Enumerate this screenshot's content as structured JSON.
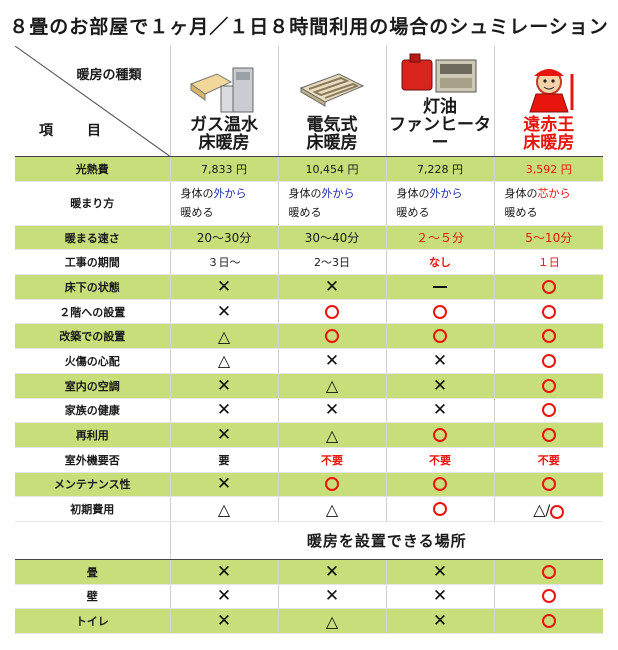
{
  "title": "８畳のお部屋で１ヶ月／１日８時間利用の場合のシュミレーション",
  "header": {
    "kind_label": "暖房の種類",
    "item_label": "項　目",
    "products": [
      {
        "line1": "ガス温水",
        "line2": "床暖房"
      },
      {
        "line1": "電気式",
        "line2": "床暖房"
      },
      {
        "line1": "灯油",
        "line2": "ファンヒーター"
      },
      {
        "line1": "遠赤王",
        "line2": "床暖房"
      }
    ]
  },
  "rows": {
    "cost": {
      "label": "光熱費",
      "values": [
        "7,833 円",
        "10,454 円",
        "7,228 円",
        "3,592 円"
      ]
    },
    "warm_way": {
      "label": "暖まり方",
      "prefix": "身体の",
      "suffix": "暖める",
      "highlights": [
        "外から",
        "外から",
        "外から",
        "芯から"
      ]
    },
    "speed": {
      "label": "暖まる速さ",
      "values": [
        "20～30分",
        "30～40分",
        "２～５分",
        "5～10分"
      ]
    },
    "period": {
      "label": "工事の期間",
      "values": [
        "３日～",
        "2～3日",
        "なし",
        "１日"
      ]
    },
    "floor": {
      "label": "床下の状態"
    },
    "second_floor": {
      "label": "２階への設置"
    },
    "renovation": {
      "label": "改築での設置"
    },
    "burn": {
      "label": "火傷の心配"
    },
    "aircon": {
      "label": "室内の空調"
    },
    "health": {
      "label": "家族の健康"
    },
    "reuse": {
      "label": "再利用"
    },
    "outdoor": {
      "label": "室外機要否",
      "values": [
        "要",
        "不要",
        "不要",
        "不要"
      ]
    },
    "maintenance": {
      "label": "メンテナンス性"
    },
    "initial": {
      "label": "初期費用",
      "last_sep": "/"
    }
  },
  "places_section": {
    "title": "暖房を設置できる場所",
    "rows": [
      {
        "label": "畳"
      },
      {
        "label": "壁"
      },
      {
        "label": "トイレ"
      }
    ]
  },
  "colors": {
    "green": "#c8de7b",
    "red": "#e8150e",
    "blue": "#1d2da8"
  }
}
